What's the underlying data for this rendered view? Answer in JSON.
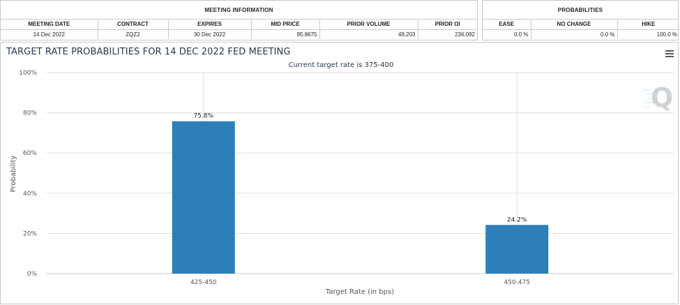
{
  "meeting_info": {
    "title": "MEETING INFORMATION",
    "headers": [
      "MEETING DATE",
      "CONTRACT",
      "EXPIRES",
      "MID PRICE",
      "PRIOR VOLUME",
      "PRIOR OI"
    ],
    "row": [
      "14 Dec 2022",
      "ZQZ2",
      "30 Dec 2022",
      "95.8675",
      "49,203",
      "236,092"
    ]
  },
  "probabilities": {
    "title": "PROBABILITIES",
    "headers": [
      "EASE",
      "NO CHANGE",
      "HIKE"
    ],
    "row": [
      "0.0 %",
      "0.0 %",
      "100.0 %"
    ]
  },
  "chart_data": {
    "type": "bar",
    "title": "TARGET RATE PROBABILITIES FOR 14 DEC 2022 FED MEETING",
    "subtitle": "Current target rate is 375-400",
    "categories": [
      "425-450",
      "450-475"
    ],
    "values": [
      75.8,
      24.2
    ],
    "data_labels": [
      "75.8%",
      "24.2%"
    ],
    "xlabel": "Target Rate (in bps)",
    "ylabel": "Probability",
    "ylim": [
      0,
      100
    ],
    "yticks": [
      0,
      20,
      40,
      60,
      80,
      100
    ],
    "ytick_labels": [
      "0%",
      "20%",
      "40%",
      "60%",
      "80%",
      "100%"
    ],
    "grid": true,
    "bar_color": "#2c7fb8",
    "logo_letter": "Q"
  }
}
